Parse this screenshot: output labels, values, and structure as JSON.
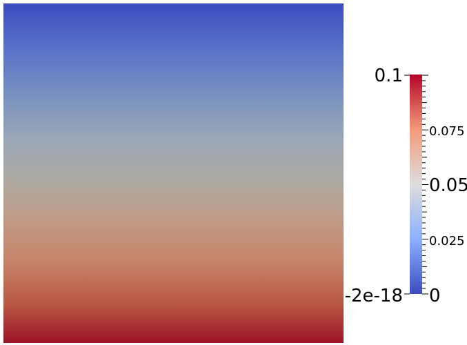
{
  "scalar_bar": {
    "range_max_label": "0.1",
    "range_min_label": "-2e-18",
    "ticks_major": [
      {
        "value": 0.1,
        "label": ""
      },
      {
        "value": 0.05,
        "label": "0.05"
      },
      {
        "value": 0,
        "label": "0"
      }
    ],
    "ticks_minor_labeled": [
      {
        "value": 0.075,
        "label": "0.075"
      },
      {
        "value": 0.025,
        "label": "0.025"
      }
    ],
    "data_range": [
      0,
      0.1
    ],
    "colormap_stops": [
      {
        "t": 0.0,
        "color": "#3b4cc0"
      },
      {
        "t": 0.25,
        "color": "#8db0fe"
      },
      {
        "t": 0.5,
        "color": "#dddddd"
      },
      {
        "t": 0.75,
        "color": "#f49a7b"
      },
      {
        "t": 1.0,
        "color": "#b40426"
      }
    ]
  },
  "field_view": {
    "top_color": "#2f3f98",
    "bottom_color": "#9c1327"
  }
}
